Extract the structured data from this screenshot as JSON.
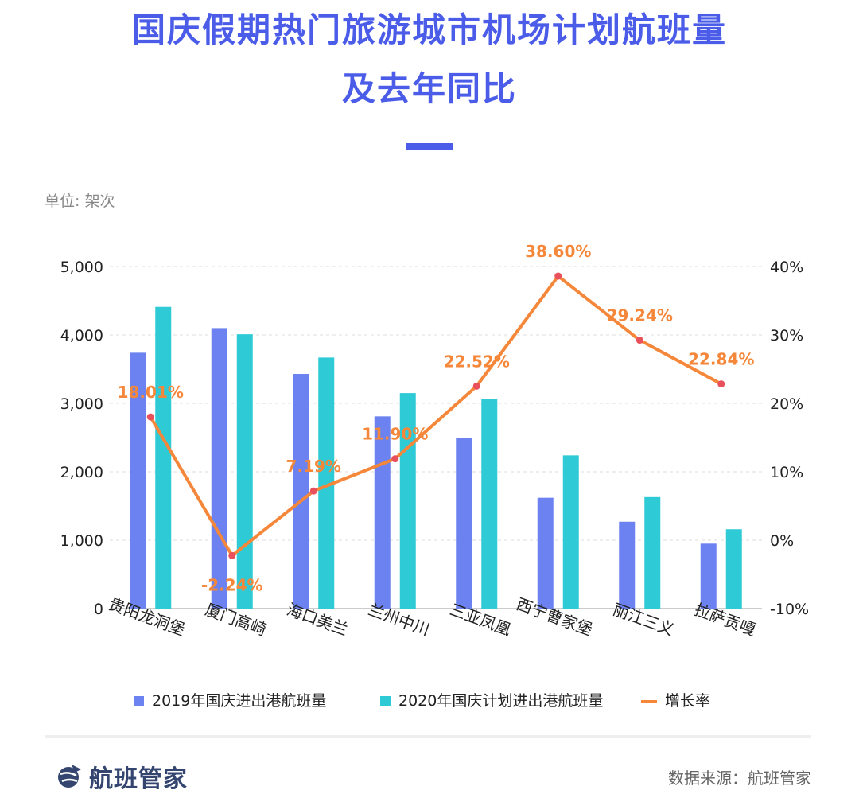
{
  "title_line1": "国庆假期热门旅游城市机场计划航班量",
  "title_line2": "及去年同比",
  "unit_label": "单位: 架次",
  "legend": {
    "series1": "2019年国庆进出港航班量",
    "series2": "2020年国庆计划进出港航班量",
    "series3": "增长率"
  },
  "brand_name": "航班管家",
  "brand_icon": "globe-plane-icon",
  "source_label": "数据来源：航班管家",
  "colors": {
    "title": "#4a5ce8",
    "bar_2019": "#6b82f0",
    "bar_2020": "#2ecad5",
    "line": "#f5873a",
    "marker": "#e8505b",
    "brand": "#34466f"
  },
  "chart_data": {
    "type": "bar",
    "categories": [
      "贵阳龙洞堡",
      "厦门高崎",
      "海口美兰",
      "兰州中川",
      "三亚凤凰",
      "西宁曹家堡",
      "丽江三义",
      "拉萨贡嘎"
    ],
    "series": [
      {
        "name": "2019年国庆进出港航班量",
        "type": "bar",
        "axis": "left",
        "values": [
          3740,
          4100,
          3430,
          2810,
          2500,
          1620,
          1270,
          950
        ]
      },
      {
        "name": "2020年国庆计划进出港航班量",
        "type": "bar",
        "axis": "left",
        "values": [
          4410,
          4010,
          3670,
          3150,
          3060,
          2240,
          1630,
          1160
        ]
      },
      {
        "name": "增长率",
        "type": "line",
        "axis": "right",
        "values": [
          18.01,
          -2.24,
          7.19,
          11.9,
          22.52,
          38.6,
          29.24,
          22.84
        ],
        "labels": [
          "18.01%",
          "-2.24%",
          "7.19%",
          "11.90%",
          "22.52%",
          "38.60%",
          "29.24%",
          "22.84%"
        ]
      }
    ],
    "y_left": {
      "ylim": [
        0,
        5000
      ],
      "ticks": [
        "0",
        "1,000",
        "2,000",
        "3,000",
        "4,000",
        "5,000"
      ]
    },
    "y_right": {
      "ylim": [
        -10,
        40
      ],
      "ticks": [
        "-10%",
        "0%",
        "10%",
        "20%",
        "30%",
        "40%"
      ]
    },
    "grid": true,
    "legend_position": "bottom"
  }
}
